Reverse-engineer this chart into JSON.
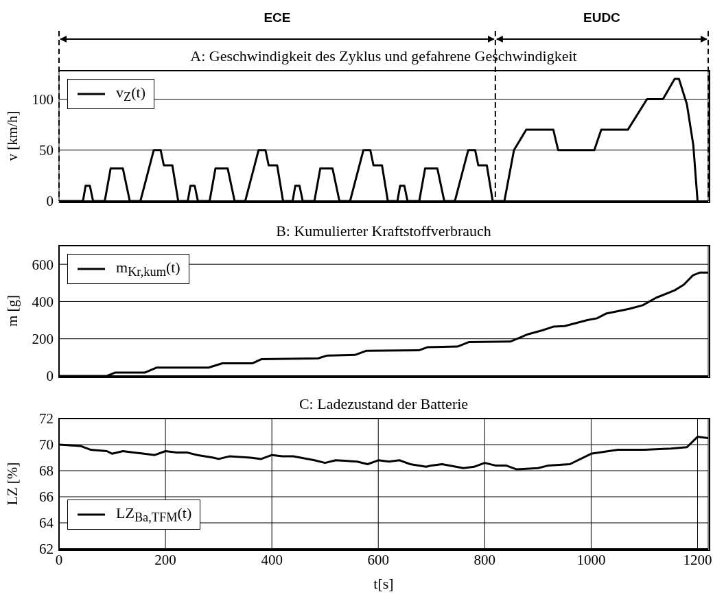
{
  "chart_data": [
    {
      "type": "line",
      "title": "A: Geschwindigkeit des Zyklus und gefahrene Geschwindigkeit",
      "ylabel": "v [km/h]",
      "xlim": [
        0,
        1220
      ],
      "xticks": [
        0,
        200,
        400,
        600,
        800,
        1000,
        1200
      ],
      "ylim": [
        0,
        128
      ],
      "yticks": [
        0,
        50,
        100
      ],
      "grid": true,
      "legend": "top left",
      "tick_labels": "y",
      "ref_lines": [
        {
          "axis": "x",
          "value": 0,
          "line_style": "dashed"
        },
        {
          "axis": "x",
          "value": 820,
          "line_style": "dashed"
        },
        {
          "axis": "x",
          "value": 1220,
          "line_style": "dashed"
        }
      ],
      "annotations": [
        "ECE",
        "EUDC"
      ],
      "series": [
        {
          "name": "v$_{Z}$(t)",
          "color": "#000000",
          "x": [
            0,
            45,
            50,
            58,
            64,
            86,
            97,
            120,
            133,
            153,
            178,
            191,
            197,
            213,
            224,
            242,
            247,
            255,
            261,
            283,
            294,
            317,
            330,
            350,
            375,
            388,
            394,
            410,
            421,
            439,
            444,
            452,
            458,
            480,
            491,
            514,
            527,
            547,
            572,
            585,
            591,
            607,
            618,
            636,
            641,
            649,
            655,
            677,
            688,
            711,
            724,
            744,
            769,
            782,
            788,
            804,
            815,
            837,
            855,
            878,
            929,
            938,
            1006,
            1019,
            1069,
            1105,
            1135,
            1157,
            1165,
            1180,
            1192,
            1200
          ],
          "values": [
            0,
            0,
            15,
            15,
            0,
            0,
            32,
            32,
            0,
            0,
            50,
            50,
            35,
            35,
            0,
            0,
            15,
            15,
            0,
            0,
            32,
            32,
            0,
            0,
            50,
            50,
            35,
            35,
            0,
            0,
            15,
            15,
            0,
            0,
            32,
            32,
            0,
            0,
            50,
            50,
            35,
            35,
            0,
            0,
            15,
            15,
            0,
            0,
            32,
            32,
            0,
            0,
            50,
            50,
            35,
            35,
            0,
            0,
            50,
            70,
            70,
            50,
            50,
            70,
            70,
            100,
            100,
            120,
            120,
            95,
            55,
            0
          ]
        }
      ]
    },
    {
      "type": "line",
      "title": "B: Kumulierter Kraftstoffverbrauch",
      "ylabel": "m [g]",
      "xlim": [
        0,
        1220
      ],
      "xticks": [
        0,
        200,
        400,
        600,
        800,
        1000,
        1200
      ],
      "ylim": [
        0,
        700
      ],
      "yticks": [
        0,
        200,
        400,
        600
      ],
      "grid": true,
      "legend": "top left",
      "tick_labels": "y",
      "series": [
        {
          "name": "m$_{Kr,kum}$(t)",
          "color": "#000000",
          "x": [
            0,
            90,
            105,
            161,
            183,
            281,
            307,
            363,
            380,
            487,
            504,
            556,
            577,
            676,
            693,
            749,
            770,
            848,
            882,
            908,
            929,
            950,
            993,
            1011,
            1028,
            1071,
            1097,
            1122,
            1157,
            1174,
            1191,
            1204,
            1220
          ],
          "values": [
            0,
            0,
            18,
            18,
            45,
            45,
            68,
            68,
            90,
            95,
            110,
            113,
            135,
            138,
            155,
            158,
            182,
            185,
            225,
            245,
            265,
            268,
            300,
            310,
            335,
            360,
            380,
            420,
            460,
            490,
            540,
            555,
            555
          ]
        }
      ]
    },
    {
      "type": "line",
      "title": "C: Ladezustand der Batterie",
      "xlabel": "t[s]",
      "ylabel": "LZ [%]",
      "xlim": [
        0,
        1220
      ],
      "xticks": [
        0,
        200,
        400,
        600,
        800,
        1000,
        1200
      ],
      "ylim": [
        62,
        72
      ],
      "yticks": [
        62,
        64,
        66,
        68,
        70,
        72
      ],
      "grid": true,
      "legend": "bottom left",
      "series": [
        {
          "name": "LZ$_{Ba,TFM}$(t)",
          "color": "#000000",
          "x": [
            0,
            40,
            60,
            90,
            100,
            120,
            140,
            160,
            180,
            200,
            220,
            240,
            260,
            290,
            300,
            320,
            360,
            380,
            400,
            420,
            440,
            480,
            500,
            520,
            560,
            580,
            600,
            620,
            640,
            660,
            690,
            700,
            720,
            760,
            780,
            800,
            820,
            840,
            860,
            900,
            920,
            960,
            1000,
            1050,
            1100,
            1150,
            1180,
            1200,
            1220
          ],
          "values": [
            70,
            69.9,
            69.6,
            69.5,
            69.3,
            69.5,
            69.4,
            69.3,
            69.2,
            69.5,
            69.4,
            69.4,
            69.2,
            69,
            68.9,
            69.1,
            69,
            68.9,
            69.2,
            69.1,
            69.1,
            68.8,
            68.6,
            68.8,
            68.7,
            68.5,
            68.8,
            68.7,
            68.8,
            68.5,
            68.3,
            68.4,
            68.5,
            68.2,
            68.3,
            68.6,
            68.4,
            68.4,
            68.1,
            68.2,
            68.4,
            68.5,
            69.3,
            69.6,
            69.6,
            69.7,
            69.8,
            70.6,
            70.5
          ]
        }
      ]
    }
  ]
}
